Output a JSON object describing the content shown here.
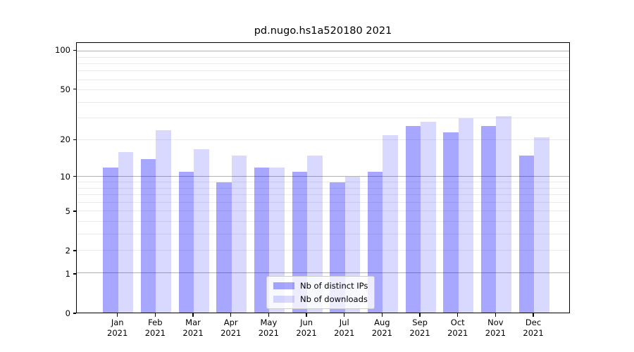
{
  "figure": {
    "title": "pd.nugo.hs1a520180 2021"
  },
  "legend": {
    "items": [
      {
        "label": "Nb of distinct IPs"
      },
      {
        "label": "Nb of downloads"
      }
    ]
  },
  "chart_data": {
    "type": "bar",
    "title": "pd.nugo.hs1a520180 2021",
    "categories": [
      "Jan",
      "Feb",
      "Mar",
      "Apr",
      "May",
      "Jun",
      "Jul",
      "Aug",
      "Sep",
      "Oct",
      "Nov",
      "Dec"
    ],
    "category_year": "2021",
    "series": [
      {
        "name": "Nb of distinct IPs",
        "color": "rgba(0,0,255,0.345)",
        "values": [
          12,
          14,
          11,
          9,
          12,
          11,
          9,
          11,
          26,
          23,
          26,
          15
        ]
      },
      {
        "name": "Nb of downloads",
        "color": "rgba(0,0,255,0.148)",
        "values": [
          16,
          24,
          17,
          15,
          12,
          15,
          10,
          22,
          28,
          30,
          31,
          21
        ]
      }
    ],
    "xlabel": "",
    "ylabel": "",
    "yscale": "log1p",
    "ylim": [
      0,
      115
    ],
    "ytick_values": [
      100,
      50,
      20,
      10,
      5,
      2,
      1,
      0
    ],
    "ytick_labels": [
      "100",
      "50",
      "20",
      "10",
      "5",
      "2",
      "1",
      "0"
    ],
    "grid": true,
    "grid_major_values": [
      1,
      10,
      100
    ],
    "grid_minor_values": [
      2,
      3,
      4,
      5,
      6,
      7,
      8,
      9,
      20,
      30,
      40,
      50,
      60,
      70,
      80,
      90
    ],
    "grid_major_color": "#b2b2b2",
    "grid_minor_color": "#ebebeb",
    "spine_color": "#000000",
    "legend_position": "lower center"
  }
}
